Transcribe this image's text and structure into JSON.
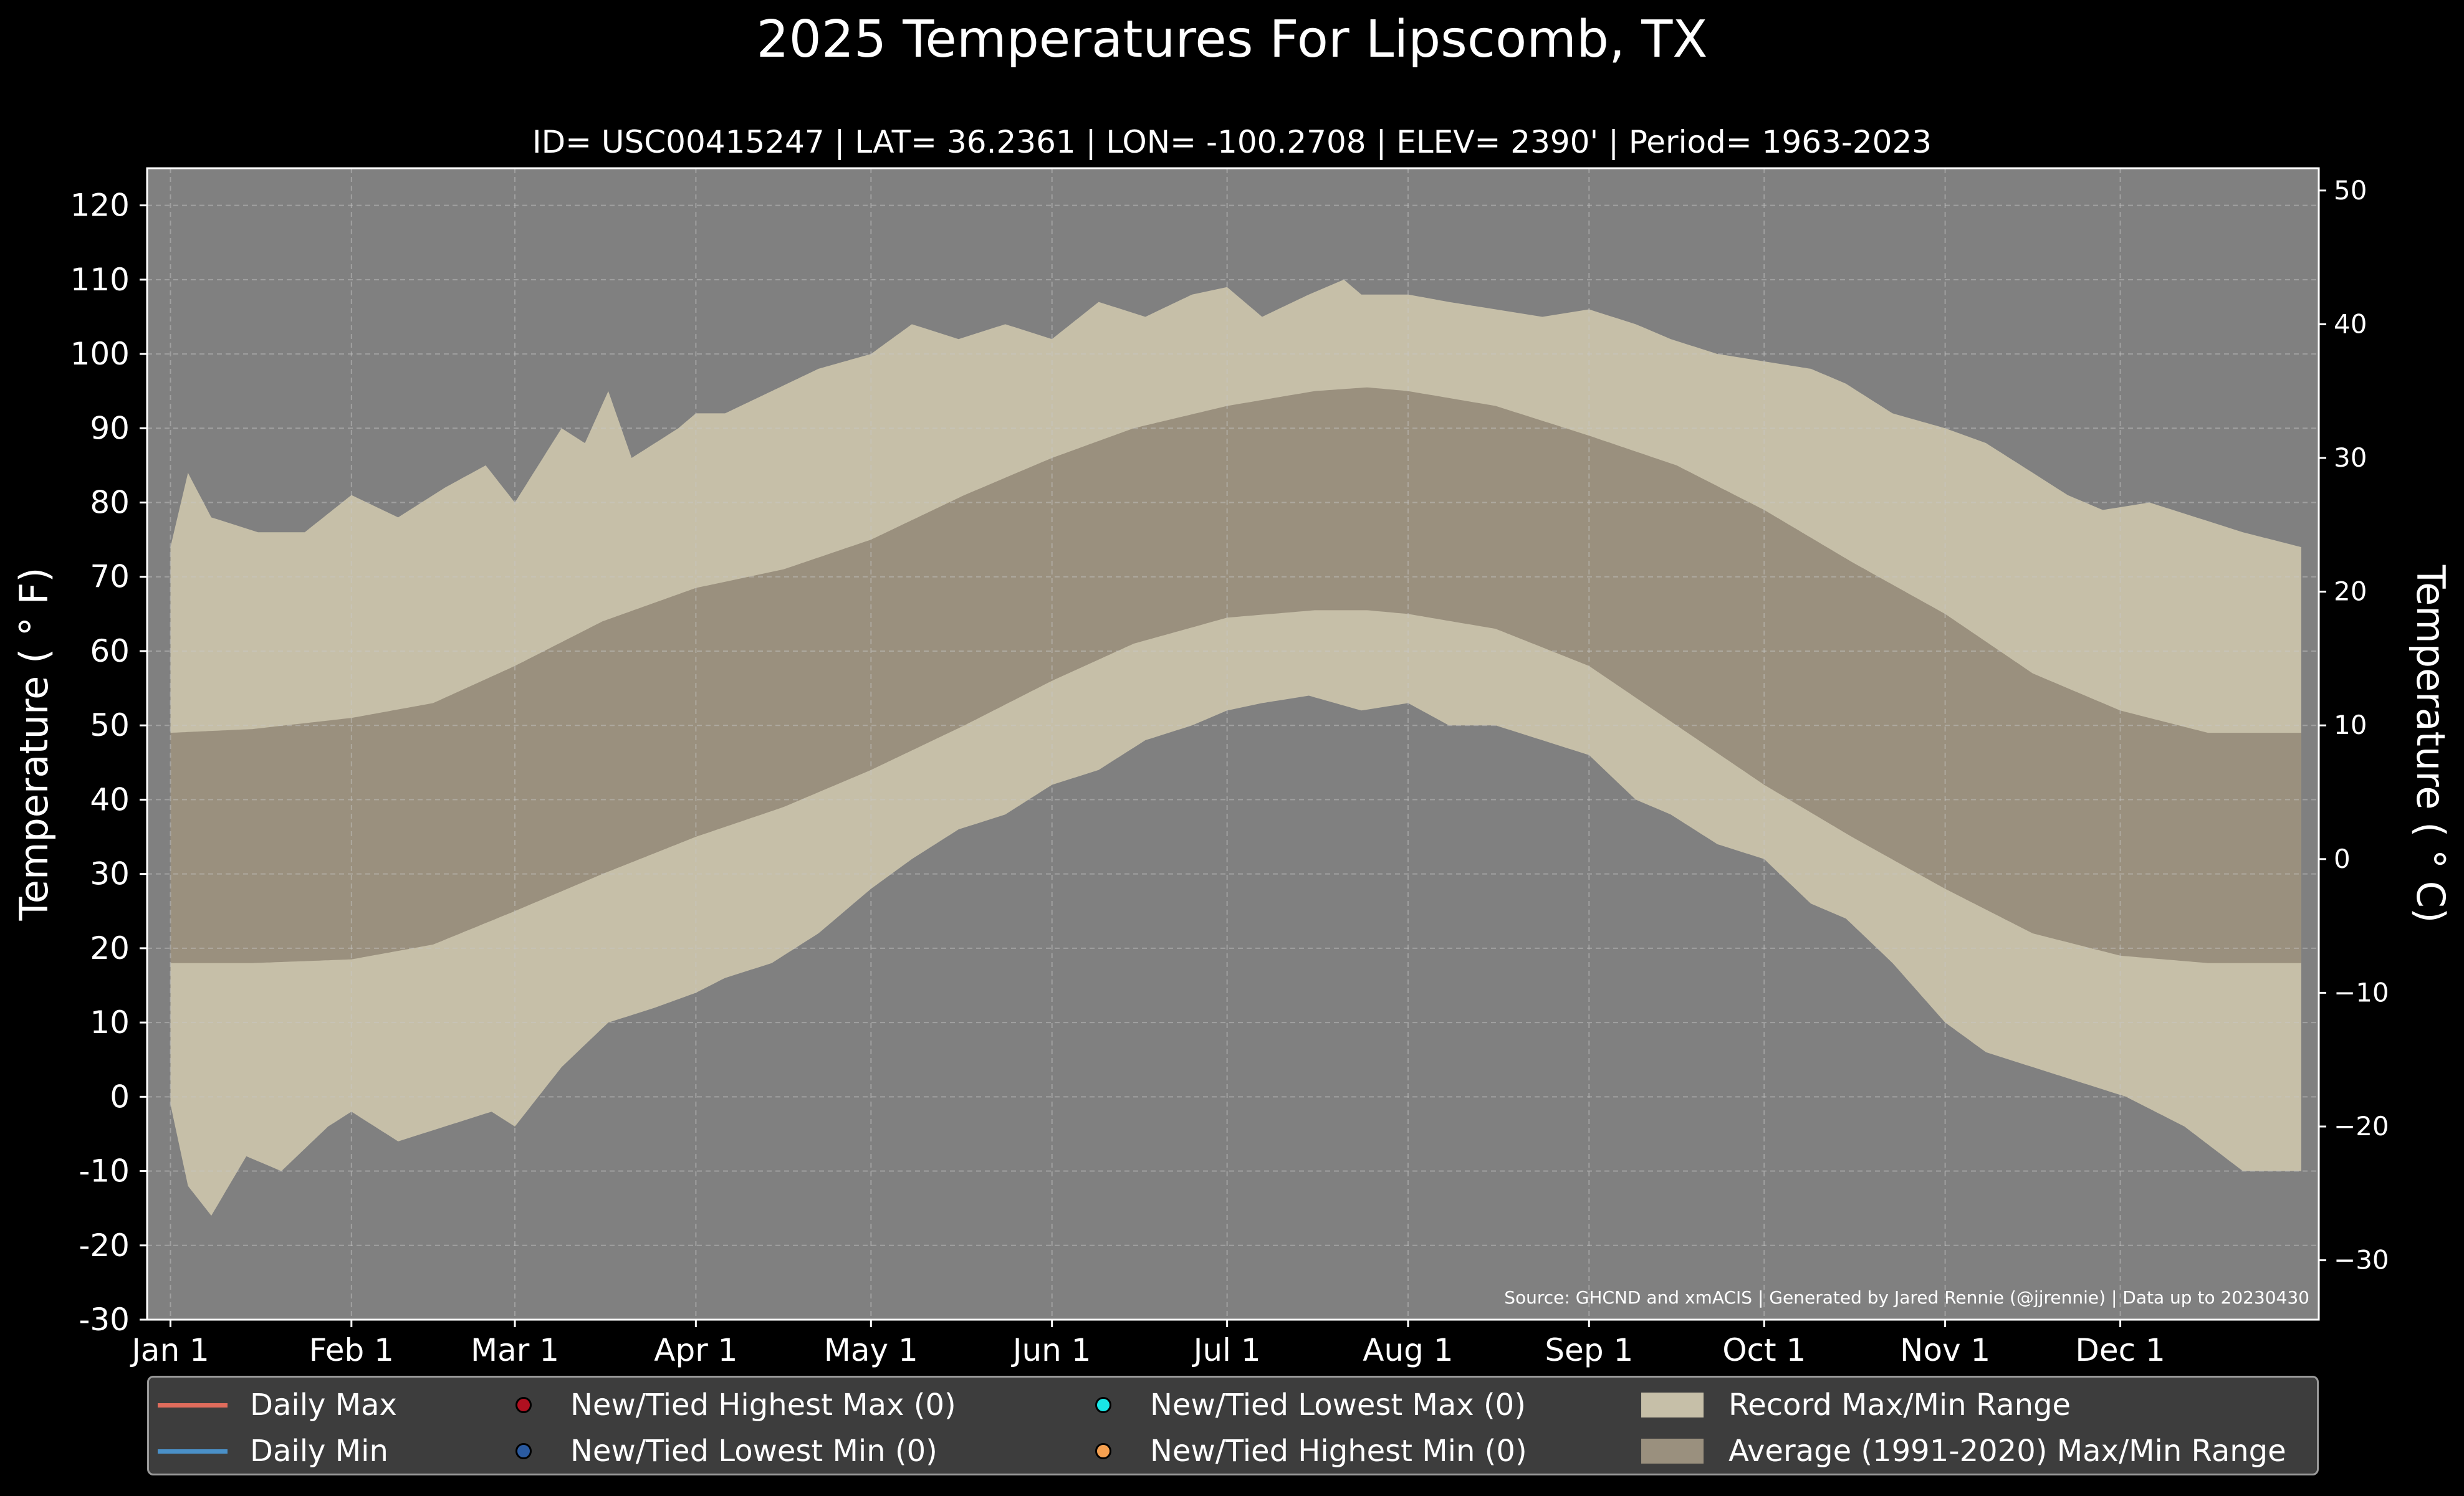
{
  "chart_data": {
    "type": "area",
    "title": "2025 Temperatures For Lipscomb, TX",
    "subtitle": "ID= USC00415247 | LAT= 36.2361 | LON= -100.2708 | ELEV= 2390' | Period= 1963-2023",
    "ylabel": "Temperature ($^\\circ$F)",
    "ylabel_display": "Temperature ( ° F)",
    "ylabel_right": "Temperature ( ° C)",
    "ylim": [
      -30,
      125
    ],
    "y_ticks": [
      -30,
      -20,
      -10,
      0,
      10,
      20,
      30,
      40,
      50,
      60,
      70,
      80,
      90,
      100,
      110,
      120
    ],
    "y_ticks_right": [
      -30,
      -20,
      -10,
      0,
      10,
      20,
      30,
      40,
      50
    ],
    "y_ticks_right_labels": [
      "−30",
      "−20",
      "−10",
      "0",
      "10",
      "20",
      "30",
      "40",
      "50"
    ],
    "xlim_day": [
      -3,
      369
    ],
    "x_ticks": [
      {
        "label": "Jan 1",
        "day": 1
      },
      {
        "label": "Feb 1",
        "day": 32
      },
      {
        "label": "Mar 1",
        "day": 60
      },
      {
        "label": "Apr 1",
        "day": 91
      },
      {
        "label": "May 1",
        "day": 121
      },
      {
        "label": "Jun 1",
        "day": 152
      },
      {
        "label": "Jul 1",
        "day": 182
      },
      {
        "label": "Aug 1",
        "day": 213
      },
      {
        "label": "Sep 1",
        "day": 244
      },
      {
        "label": "Oct 1",
        "day": 274
      },
      {
        "label": "Nov 1",
        "day": 305
      },
      {
        "label": "Dec 1",
        "day": 335
      }
    ],
    "grid": true,
    "source_note": "Source: GHCND and xmACIS | Generated by Jared Rennie (@jjrennie) | Data up to 20230430",
    "record_max": [
      [
        1,
        74
      ],
      [
        4,
        84
      ],
      [
        8,
        78
      ],
      [
        16,
        76
      ],
      [
        24,
        76
      ],
      [
        32,
        81
      ],
      [
        40,
        78
      ],
      [
        48,
        82
      ],
      [
        55,
        85
      ],
      [
        60,
        80
      ],
      [
        68,
        90
      ],
      [
        72,
        88
      ],
      [
        76,
        95
      ],
      [
        80,
        86
      ],
      [
        88,
        90
      ],
      [
        91,
        92
      ],
      [
        96,
        92
      ],
      [
        104,
        95
      ],
      [
        112,
        98
      ],
      [
        121,
        100
      ],
      [
        128,
        104
      ],
      [
        136,
        102
      ],
      [
        144,
        104
      ],
      [
        152,
        102
      ],
      [
        160,
        107
      ],
      [
        168,
        105
      ],
      [
        176,
        108
      ],
      [
        182,
        109
      ],
      [
        188,
        105
      ],
      [
        196,
        108
      ],
      [
        202,
        110
      ],
      [
        205,
        108
      ],
      [
        213,
        108
      ],
      [
        220,
        107
      ],
      [
        228,
        106
      ],
      [
        236,
        105
      ],
      [
        244,
        106
      ],
      [
        252,
        104
      ],
      [
        258,
        102
      ],
      [
        266,
        100
      ],
      [
        274,
        99
      ],
      [
        282,
        98
      ],
      [
        288,
        96
      ],
      [
        296,
        92
      ],
      [
        305,
        90
      ],
      [
        312,
        88
      ],
      [
        320,
        84
      ],
      [
        326,
        81
      ],
      [
        332,
        79
      ],
      [
        340,
        80
      ],
      [
        348,
        78
      ],
      [
        356,
        76
      ],
      [
        366,
        74
      ]
    ],
    "record_min": [
      [
        1,
        -1
      ],
      [
        4,
        -12
      ],
      [
        8,
        -16
      ],
      [
        14,
        -8
      ],
      [
        20,
        -10
      ],
      [
        28,
        -4
      ],
      [
        32,
        -2
      ],
      [
        40,
        -6
      ],
      [
        48,
        -4
      ],
      [
        56,
        -2
      ],
      [
        60,
        -4
      ],
      [
        68,
        4
      ],
      [
        76,
        10
      ],
      [
        84,
        12
      ],
      [
        91,
        14
      ],
      [
        96,
        16
      ],
      [
        104,
        18
      ],
      [
        112,
        22
      ],
      [
        121,
        28
      ],
      [
        128,
        32
      ],
      [
        136,
        36
      ],
      [
        144,
        38
      ],
      [
        152,
        42
      ],
      [
        160,
        44
      ],
      [
        168,
        48
      ],
      [
        176,
        50
      ],
      [
        182,
        52
      ],
      [
        188,
        53
      ],
      [
        196,
        54
      ],
      [
        205,
        52
      ],
      [
        213,
        53
      ],
      [
        220,
        50
      ],
      [
        228,
        50
      ],
      [
        236,
        48
      ],
      [
        244,
        46
      ],
      [
        252,
        40
      ],
      [
        258,
        38
      ],
      [
        266,
        34
      ],
      [
        274,
        32
      ],
      [
        282,
        26
      ],
      [
        288,
        24
      ],
      [
        296,
        18
      ],
      [
        305,
        10
      ],
      [
        312,
        6
      ],
      [
        320,
        4
      ],
      [
        328,
        2
      ],
      [
        336,
        0
      ],
      [
        346,
        -4
      ],
      [
        356,
        -10
      ],
      [
        366,
        -10
      ]
    ],
    "normal_max": [
      [
        1,
        49
      ],
      [
        15,
        49.5
      ],
      [
        32,
        51
      ],
      [
        46,
        53
      ],
      [
        60,
        58
      ],
      [
        75,
        64
      ],
      [
        91,
        68.5
      ],
      [
        106,
        71
      ],
      [
        121,
        75
      ],
      [
        137,
        81
      ],
      [
        152,
        86
      ],
      [
        166,
        90
      ],
      [
        182,
        93
      ],
      [
        197,
        95
      ],
      [
        206,
        95.5
      ],
      [
        213,
        95
      ],
      [
        228,
        93
      ],
      [
        244,
        89
      ],
      [
        259,
        85
      ],
      [
        274,
        79
      ],
      [
        289,
        72
      ],
      [
        305,
        65
      ],
      [
        320,
        57
      ],
      [
        335,
        52
      ],
      [
        350,
        49
      ],
      [
        366,
        49
      ]
    ],
    "normal_min": [
      [
        1,
        18
      ],
      [
        15,
        18
      ],
      [
        32,
        18.5
      ],
      [
        46,
        20.5
      ],
      [
        60,
        25
      ],
      [
        75,
        30
      ],
      [
        91,
        35
      ],
      [
        106,
        39
      ],
      [
        121,
        44
      ],
      [
        137,
        50
      ],
      [
        152,
        56
      ],
      [
        166,
        61
      ],
      [
        182,
        64.5
      ],
      [
        197,
        65.5
      ],
      [
        206,
        65.5
      ],
      [
        213,
        65
      ],
      [
        228,
        63
      ],
      [
        244,
        58
      ],
      [
        259,
        50
      ],
      [
        274,
        42
      ],
      [
        289,
        35
      ],
      [
        305,
        28
      ],
      [
        320,
        22
      ],
      [
        335,
        19
      ],
      [
        350,
        18
      ],
      [
        366,
        18
      ]
    ]
  },
  "legend": {
    "items": [
      {
        "label": "Daily Max",
        "color": "#e06c5c"
      },
      {
        "label": "Daily Min",
        "color": "#4a90c8"
      },
      {
        "label": "New/Tied Highest Max (0)",
        "color": "#b01020"
      },
      {
        "label": "New/Tied Lowest Min (0)",
        "color": "#2a5aa0"
      },
      {
        "label": "New/Tied Lowest Max (0)",
        "color": "#19e6e6"
      },
      {
        "label": "New/Tied Highest Min (0)",
        "color": "#f5a050"
      },
      {
        "label": "Record Max/Min Range",
        "color": "#c6bfa8"
      },
      {
        "label": "Average (1991-2020) Max/Min Range",
        "color": "#9a907e"
      }
    ]
  },
  "colors": {
    "background": "#000000",
    "plot_background": "#808080",
    "record_range": "#c6bfa8",
    "normal_range": "#9a907e",
    "text": "#ffffff"
  }
}
